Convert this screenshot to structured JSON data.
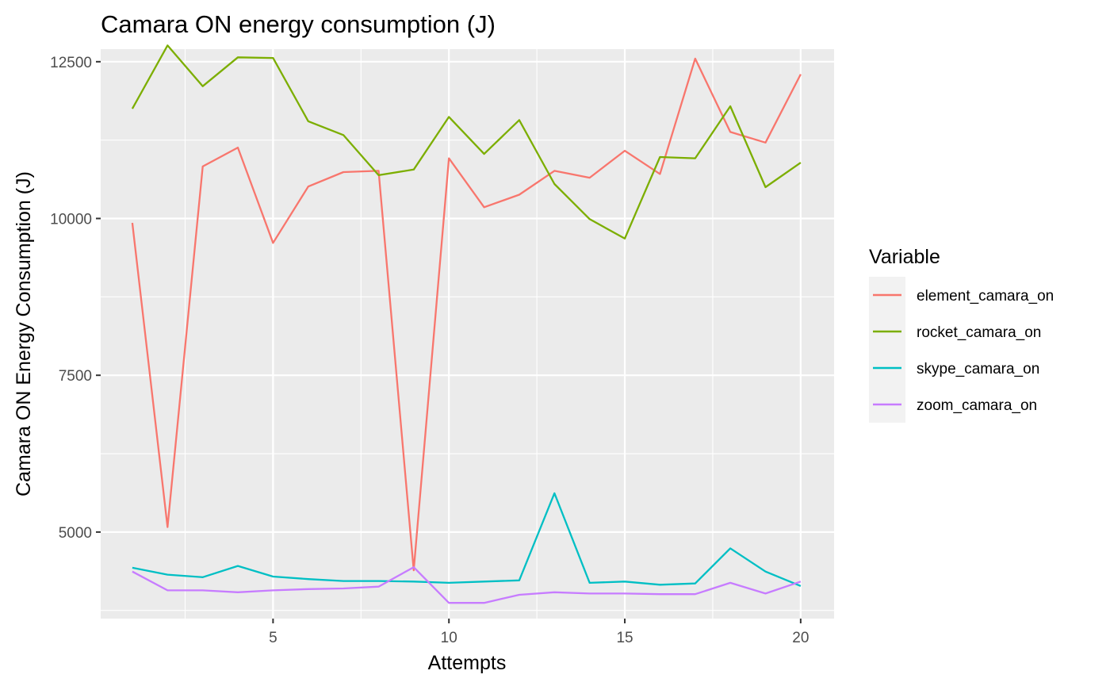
{
  "chart_data": {
    "type": "line",
    "title": "Camara ON energy consumption (J)",
    "xlabel": "Attempts",
    "ylabel": "Camara ON Energy Consumption (J)",
    "xlim": [
      0.1,
      20.95
    ],
    "ylim": [
      3620,
      12700
    ],
    "xticks": [
      5,
      10,
      15,
      20
    ],
    "yticks": [
      5000,
      7500,
      10000,
      12500
    ],
    "grid": true,
    "legend": {
      "title": "Variable",
      "position": "right"
    },
    "x": [
      1,
      2,
      3,
      4,
      5,
      6,
      7,
      8,
      9,
      10,
      11,
      12,
      13,
      14,
      15,
      16,
      17,
      18,
      19,
      20
    ],
    "series": [
      {
        "name": "element_camara_on",
        "color": "#F8766D",
        "values": [
          9930,
          5080,
          10830,
          11130,
          9610,
          10510,
          10740,
          10760,
          4390,
          10960,
          10180,
          10380,
          10760,
          10650,
          11080,
          10710,
          12550,
          11380,
          11210,
          12300
        ]
      },
      {
        "name": "rocket_camara_on",
        "color": "#7CAE00",
        "values": [
          11750,
          12760,
          12110,
          12570,
          12560,
          11550,
          11330,
          10690,
          10780,
          11620,
          11030,
          11570,
          10550,
          9990,
          9680,
          10980,
          10960,
          11790,
          10500,
          10890
        ]
      },
      {
        "name": "skype_camara_on",
        "color": "#00BFC4",
        "values": [
          4430,
          4320,
          4280,
          4460,
          4290,
          4250,
          4220,
          4220,
          4210,
          4190,
          4210,
          4230,
          5620,
          4190,
          4210,
          4160,
          4180,
          4740,
          4370,
          4140
        ]
      },
      {
        "name": "zoom_camara_on",
        "color": "#C77CFF",
        "values": [
          4370,
          4070,
          4070,
          4040,
          4070,
          4090,
          4100,
          4130,
          4440,
          3870,
          3870,
          4000,
          4040,
          4020,
          4020,
          4010,
          4010,
          4190,
          4020,
          4210
        ]
      }
    ]
  }
}
